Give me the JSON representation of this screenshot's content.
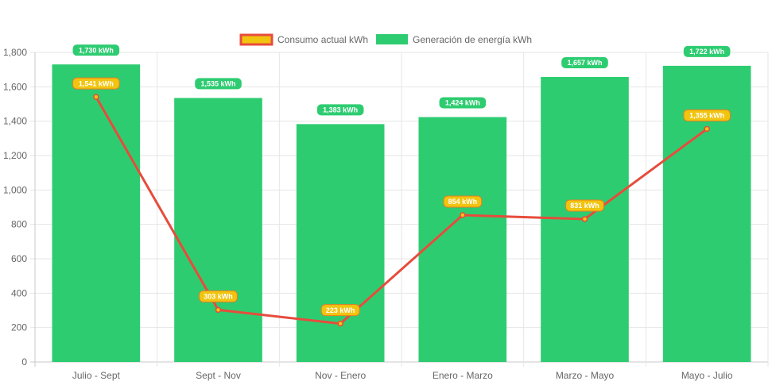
{
  "chart_data": {
    "type": "bar",
    "categories": [
      "Julio - Sept",
      "Sept - Nov",
      "Nov - Enero",
      "Enero - Marzo",
      "Marzo - Mayo",
      "Mayo - Julio"
    ],
    "ylim": [
      0,
      1800
    ],
    "yticks": [
      0,
      200,
      400,
      600,
      800,
      1000,
      1200,
      1400,
      1600,
      1800
    ],
    "ytick_labels": [
      "0",
      "200",
      "400",
      "600",
      "800",
      "1,000",
      "1,200",
      "1,400",
      "1,600",
      "1,800"
    ],
    "grid": true,
    "legend_position": "top-center",
    "series": [
      {
        "name": "Consumo actual kWh",
        "kind": "line",
        "values": [
          1541,
          303,
          223,
          854,
          831,
          1355
        ],
        "labels": [
          "1,541 kWh",
          "303 kWh",
          "223 kWh",
          "854 kWh",
          "831 kWh",
          "1,355 kWh"
        ],
        "color": "#f1c40f",
        "border_color": "#e74c3c"
      },
      {
        "name": "Generación de energía kWh",
        "kind": "bar",
        "values": [
          1730,
          1535,
          1383,
          1424,
          1657,
          1722
        ],
        "labels": [
          "1,730 kWh",
          "1,535 kWh",
          "1,383 kWh",
          "1,424 kWh",
          "1,657 kWh",
          "1,722 kWh"
        ],
        "color": "#2ecc71"
      }
    ]
  }
}
